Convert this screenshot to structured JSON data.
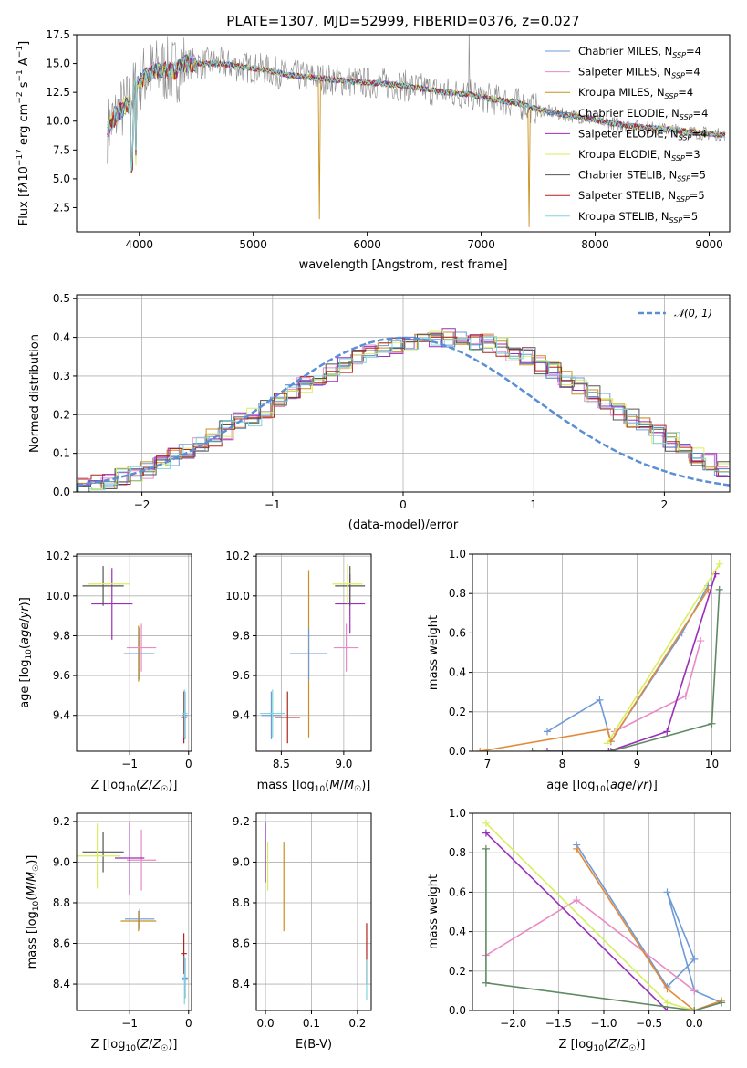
{
  "figure": {
    "title": "PLATE=1307, MJD=52999, FIBERID=0376, z=0.027"
  },
  "colors": {
    "series": [
      "#6e9ad8",
      "#e98ac5",
      "#c8901e",
      "#4f7fbf",
      "#9a2fb9",
      "#d8ef5c",
      "#555555",
      "#b0241e",
      "#7fd6dc"
    ],
    "fit_lines": [
      "#6e9ad8",
      "#e98ac5",
      "#e38a3a",
      "#9a2fb9",
      "#d8ef5c",
      "#5f8a64"
    ],
    "gaussian": "#5a8fd6",
    "data": "#888888",
    "grid": "#b0b0b0"
  },
  "chart_data": [
    {
      "id": "spectrum",
      "type": "line",
      "title": "PLATE=1307, MJD=52999, FIBERID=0376, z=0.027",
      "xlabel": "wavelength [Angstrom, rest frame]",
      "ylabel": "Flux [f_λ 10^-17 erg cm^-2 s^-1 A^-1]",
      "xlim": [
        3450,
        9180
      ],
      "ylim": [
        0.4,
        17.5
      ],
      "xticks": [
        "4000",
        "5000",
        "6000",
        "7000",
        "8000",
        "9000"
      ],
      "yticks": [
        "2.5",
        "5.0",
        "7.5",
        "10.0",
        "12.5",
        "15.0",
        "17.5"
      ],
      "grid": false,
      "legend_position": "top-right",
      "series": [
        {
          "name": "Chabrier MILES, N_SSP=4"
        },
        {
          "name": "Salpeter MILES, N_SSP=4"
        },
        {
          "name": "Kroupa MILES, N_SSP=4"
        },
        {
          "name": "Chabrier ELODIE, N_SSP=4"
        },
        {
          "name": "Salpeter ELODIE, N_SSP=4"
        },
        {
          "name": "Kroupa ELODIE, N_SSP=3"
        },
        {
          "name": "Chabrier STELIB, N_SSP=5"
        },
        {
          "name": "Salpeter STELIB, N_SSP=5"
        },
        {
          "name": "Kroupa STELIB, N_SSP=5"
        }
      ],
      "continuum": {
        "x": [
          3700,
          3800,
          3900,
          4000,
          4100,
          4200,
          4300,
          4400,
          4500,
          4700,
          4900,
          5100,
          5300,
          5500,
          5700,
          5900,
          6100,
          6300,
          6500,
          6700,
          6900,
          7100,
          7300,
          7500,
          7700,
          7900,
          8100,
          8300,
          8500,
          8700,
          8900,
          9100
        ],
        "y": [
          9.0,
          10.5,
          11.5,
          13.5,
          14.2,
          14.5,
          14.3,
          15.0,
          15.0,
          15.0,
          14.7,
          14.5,
          14.0,
          13.8,
          13.6,
          13.4,
          13.3,
          13.1,
          12.8,
          12.5,
          12.3,
          11.9,
          11.6,
          11.0,
          10.6,
          10.3,
          9.9,
          9.6,
          9.4,
          9.2,
          9.0,
          8.8
        ]
      }
    },
    {
      "id": "residuals",
      "type": "line",
      "xlabel": "(data-model)/error",
      "ylabel": "Normed distribution",
      "xlim": [
        -2.5,
        2.5
      ],
      "ylim": [
        0,
        0.51
      ],
      "xticks": [
        "−2",
        "−1",
        "0",
        "1",
        "2"
      ],
      "yticks": [
        "0.0",
        "0.1",
        "0.2",
        "0.3",
        "0.4",
        "0.5"
      ],
      "grid": true,
      "legend_position": "top-right",
      "legend": [
        {
          "name": "N(0,1)"
        }
      ],
      "hist_bins": {
        "start": -2.5,
        "width": 0.1,
        "count": 50
      },
      "hist_mean": [
        0.018,
        0.022,
        0.03,
        0.038,
        0.05,
        0.06,
        0.075,
        0.09,
        0.105,
        0.125,
        0.14,
        0.16,
        0.18,
        0.195,
        0.215,
        0.235,
        0.255,
        0.275,
        0.29,
        0.31,
        0.33,
        0.345,
        0.36,
        0.37,
        0.38,
        0.39,
        0.395,
        0.4,
        0.4,
        0.4,
        0.39,
        0.385,
        0.375,
        0.36,
        0.35,
        0.33,
        0.315,
        0.295,
        0.275,
        0.25,
        0.23,
        0.21,
        0.19,
        0.17,
        0.15,
        0.13,
        0.11,
        0.09,
        0.075,
        0.06
      ]
    },
    {
      "id": "age_vs_Z",
      "type": "scatter",
      "xlabel": "Z [log10(Z/Z☉)]",
      "ylabel": "age  [log10(age/yr)]",
      "xlim": [
        -1.9,
        0.05
      ],
      "ylim": [
        9.22,
        10.21
      ],
      "xticks": [
        "−1",
        "0"
      ],
      "yticks": [
        "9.4",
        "9.6",
        "9.8",
        "10.0",
        "10.2"
      ],
      "grid": true,
      "errorbars": [
        {
          "series": 7,
          "x": -0.08,
          "y": 9.39,
          "xerr": [
            0.05,
            0.05
          ],
          "yerr": [
            0.13,
            0.13
          ]
        },
        {
          "series": 0,
          "x": -0.06,
          "y": 9.4,
          "xerr": [
            0.05,
            0.05
          ],
          "yerr": [
            0.12,
            0.12
          ]
        },
        {
          "series": 8,
          "x": -0.07,
          "y": 9.41,
          "xerr": [
            0.05,
            0.05
          ],
          "yerr": [
            0.12,
            0.12
          ]
        },
        {
          "series": 2,
          "x": -0.85,
          "y": 9.71,
          "xerr": [
            0.25,
            0.25
          ],
          "yerr": [
            0.14,
            0.14
          ]
        },
        {
          "series": 0,
          "x": -0.83,
          "y": 9.71,
          "xerr": [
            0.25,
            0.25
          ],
          "yerr": [
            0.13,
            0.13
          ]
        },
        {
          "series": 1,
          "x": -0.8,
          "y": 9.74,
          "xerr": [
            0.25,
            0.25
          ],
          "yerr": [
            0.12,
            0.12
          ]
        },
        {
          "series": 4,
          "x": -1.3,
          "y": 9.96,
          "xerr": [
            0.35,
            0.35
          ],
          "yerr": [
            0.18,
            0.18
          ]
        },
        {
          "series": 6,
          "x": -1.45,
          "y": 10.05,
          "xerr": [
            0.35,
            0.35
          ],
          "yerr": [
            0.1,
            0.1
          ]
        },
        {
          "series": 5,
          "x": -1.35,
          "y": 10.06,
          "xerr": [
            0.35,
            0.35
          ],
          "yerr": [
            0.1,
            0.1
          ]
        }
      ]
    },
    {
      "id": "age_vs_mass",
      "type": "scatter",
      "xlabel": "mass [log10(M/M☉)]",
      "ylabel": "",
      "xlim": [
        8.3,
        9.22
      ],
      "ylim": [
        9.22,
        10.21
      ],
      "xticks": [
        "8.5",
        "9.0"
      ],
      "yticks": [
        "9.4",
        "9.6",
        "9.8",
        "10.0",
        "10.2"
      ],
      "grid": true,
      "errorbars": [
        {
          "series": 0,
          "x": 8.42,
          "y": 9.4,
          "xerr": [
            0.08,
            0.08
          ],
          "yerr": [
            0.12,
            0.12
          ]
        },
        {
          "series": 7,
          "x": 8.55,
          "y": 9.39,
          "xerr": [
            0.1,
            0.1
          ],
          "yerr": [
            0.13,
            0.13
          ]
        },
        {
          "series": 8,
          "x": 8.43,
          "y": 9.41,
          "xerr": [
            0.1,
            0.1
          ],
          "yerr": [
            0.12,
            0.12
          ]
        },
        {
          "series": 2,
          "x": 8.72,
          "y": 9.71,
          "xerr": [
            0.05,
            0.05
          ],
          "yerr": [
            0.42,
            0.42
          ]
        },
        {
          "series": 0,
          "x": 8.72,
          "y": 9.71,
          "xerr": [
            0.15,
            0.15
          ],
          "yerr": [
            0.13,
            0.13
          ]
        },
        {
          "series": 1,
          "x": 9.02,
          "y": 9.74,
          "xerr": [
            0.1,
            0.1
          ],
          "yerr": [
            0.12,
            0.12
          ]
        },
        {
          "series": 4,
          "x": 9.05,
          "y": 9.96,
          "xerr": [
            0.12,
            0.12
          ],
          "yerr": [
            0.15,
            0.15
          ]
        },
        {
          "series": 6,
          "x": 9.05,
          "y": 10.05,
          "xerr": [
            0.12,
            0.12
          ],
          "yerr": [
            0.1,
            0.1
          ]
        },
        {
          "series": 5,
          "x": 9.03,
          "y": 10.06,
          "xerr": [
            0.12,
            0.12
          ],
          "yerr": [
            0.1,
            0.1
          ]
        }
      ]
    },
    {
      "id": "weight_vs_age",
      "type": "line",
      "xlabel": "age  [log10(age/yr)]",
      "ylabel": "mass weight",
      "xlim": [
        6.8,
        10.25
      ],
      "ylim": [
        0,
        1
      ],
      "xticks": [
        "7",
        "8",
        "9",
        "10"
      ],
      "yticks": [
        "0.0",
        "0.2",
        "0.4",
        "0.6",
        "0.8",
        "1.0"
      ],
      "grid": true,
      "series": [
        {
          "color_index": 0,
          "x": [
            7.8,
            8.5,
            8.65,
            9.6,
            9.95
          ],
          "y": [
            0.1,
            0.26,
            0.05,
            0.6,
            0.84
          ]
        },
        {
          "color_index": 1,
          "x": [
            8.7,
            9.65,
            9.85
          ],
          "y": [
            0.1,
            0.28,
            0.56
          ]
        },
        {
          "color_index": 2,
          "x": [
            6.9,
            8.6,
            8.65,
            9.95
          ],
          "y": [
            0.0,
            0.11,
            0.05,
            0.82
          ]
        },
        {
          "color_index": 3,
          "x": [
            7.8,
            8.62,
            9.4,
            10.05
          ],
          "y": [
            0.0,
            0.0,
            0.1,
            0.9
          ]
        },
        {
          "color_index": 4,
          "x": [
            8.6,
            10.1
          ],
          "y": [
            0.04,
            0.95
          ]
        },
        {
          "color_index": 5,
          "x": [
            7.6,
            8.65,
            10.0,
            10.1
          ],
          "y": [
            0.0,
            0.0,
            0.14,
            0.82
          ]
        }
      ]
    },
    {
      "id": "mass_vs_Z",
      "type": "scatter",
      "xlabel": "Z [log10(Z/Z☉)]",
      "ylabel": "mass [log10(M/M☉)]",
      "xlim": [
        -1.9,
        0.05
      ],
      "ylim": [
        8.27,
        9.24
      ],
      "xticks": [
        "−1",
        "0"
      ],
      "yticks": [
        "8.4",
        "8.6",
        "8.8",
        "9.0",
        "9.2"
      ],
      "grid": true,
      "errorbars": [
        {
          "series": 7,
          "x": -0.08,
          "y": 8.55,
          "xerr": [
            0.05,
            0.05
          ],
          "yerr": [
            0.1,
            0.1
          ]
        },
        {
          "series": 0,
          "x": -0.06,
          "y": 8.43,
          "xerr": [
            0.05,
            0.05
          ],
          "yerr": [
            0.1,
            0.1
          ]
        },
        {
          "series": 8,
          "x": -0.07,
          "y": 8.42,
          "xerr": [
            0.05,
            0.05
          ],
          "yerr": [
            0.12,
            0.12
          ]
        },
        {
          "series": 2,
          "x": -0.85,
          "y": 8.71,
          "xerr": [
            0.3,
            0.3
          ],
          "yerr": [
            0.05,
            0.05
          ]
        },
        {
          "series": 0,
          "x": -0.83,
          "y": 8.72,
          "xerr": [
            0.25,
            0.25
          ],
          "yerr": [
            0.05,
            0.05
          ]
        },
        {
          "series": 1,
          "x": -0.8,
          "y": 9.01,
          "xerr": [
            0.25,
            0.25
          ],
          "yerr": [
            0.15,
            0.15
          ]
        },
        {
          "series": 4,
          "x": -1.0,
          "y": 9.02,
          "xerr": [
            0.25,
            0.25
          ],
          "yerr": [
            0.18,
            0.18
          ]
        },
        {
          "series": 6,
          "x": -1.45,
          "y": 9.05,
          "xerr": [
            0.35,
            0.35
          ],
          "yerr": [
            0.1,
            0.1
          ]
        },
        {
          "series": 5,
          "x": -1.55,
          "y": 9.03,
          "xerr": [
            0.4,
            0.4
          ],
          "yerr": [
            0.16,
            0.16
          ]
        }
      ]
    },
    {
      "id": "mass_vs_ebv",
      "type": "scatter",
      "xlabel": "E(B-V)",
      "ylabel": "",
      "xlim": [
        -0.02,
        0.23
      ],
      "ylim": [
        8.27,
        9.24
      ],
      "xticks": [
        "0.0",
        "0.1",
        "0.2"
      ],
      "yticks": [
        "8.4",
        "8.6",
        "8.8",
        "9.0",
        "9.2"
      ],
      "grid": true,
      "errorbars": [
        {
          "series": 4,
          "x": 0.0,
          "y": 9.05,
          "xerr": [
            0,
            0
          ],
          "yerr": [
            0.15,
            0.15
          ]
        },
        {
          "series": 5,
          "x": 0.005,
          "y": 8.98,
          "xerr": [
            0,
            0
          ],
          "yerr": [
            0.12,
            0.12
          ]
        },
        {
          "series": 2,
          "x": 0.04,
          "y": 8.88,
          "xerr": [
            0,
            0
          ],
          "yerr": [
            0.22,
            0.22
          ]
        },
        {
          "series": 7,
          "x": 0.22,
          "y": 8.55,
          "xerr": [
            0,
            0
          ],
          "yerr": [
            0.15,
            0.15
          ]
        },
        {
          "series": 8,
          "x": 0.22,
          "y": 8.42,
          "xerr": [
            0,
            0
          ],
          "yerr": [
            0.1,
            0.1
          ]
        }
      ]
    },
    {
      "id": "weight_vs_Z",
      "type": "line",
      "xlabel": "Z [log10(Z/Z☉)]",
      "ylabel": "mass weight",
      "xlim": [
        -2.45,
        0.4
      ],
      "ylim": [
        0,
        1
      ],
      "xticks": [
        "−2.0",
        "−1.5",
        "−1.0",
        "−0.5",
        "0.0"
      ],
      "yticks": [
        "0.0",
        "0.2",
        "0.4",
        "0.6",
        "0.8",
        "1.0"
      ],
      "grid": true,
      "series": [
        {
          "color_index": 0,
          "x": [
            -1.3,
            -0.3,
            0.0,
            -0.3,
            0.0,
            0.3
          ],
          "y": [
            0.84,
            0.12,
            0.26,
            0.6,
            0.1,
            0.04
          ]
        },
        {
          "color_index": 1,
          "x": [
            -2.3,
            -1.3,
            0.0
          ],
          "y": [
            0.28,
            0.56,
            0.1
          ]
        },
        {
          "color_index": 2,
          "x": [
            -1.3,
            -0.3,
            0.0,
            0.3
          ],
          "y": [
            0.82,
            0.11,
            0.0,
            0.05
          ]
        },
        {
          "color_index": 3,
          "x": [
            -2.3,
            -0.3,
            0.0
          ],
          "y": [
            0.9,
            0.0,
            0.0
          ]
        },
        {
          "color_index": 4,
          "x": [
            -2.3,
            -0.3,
            0.0
          ],
          "y": [
            0.95,
            0.04,
            0.0
          ]
        },
        {
          "color_index": 5,
          "x": [
            -2.3,
            -2.3,
            0.0,
            0.3
          ],
          "y": [
            0.82,
            0.14,
            0.0,
            0.04
          ]
        }
      ]
    }
  ]
}
